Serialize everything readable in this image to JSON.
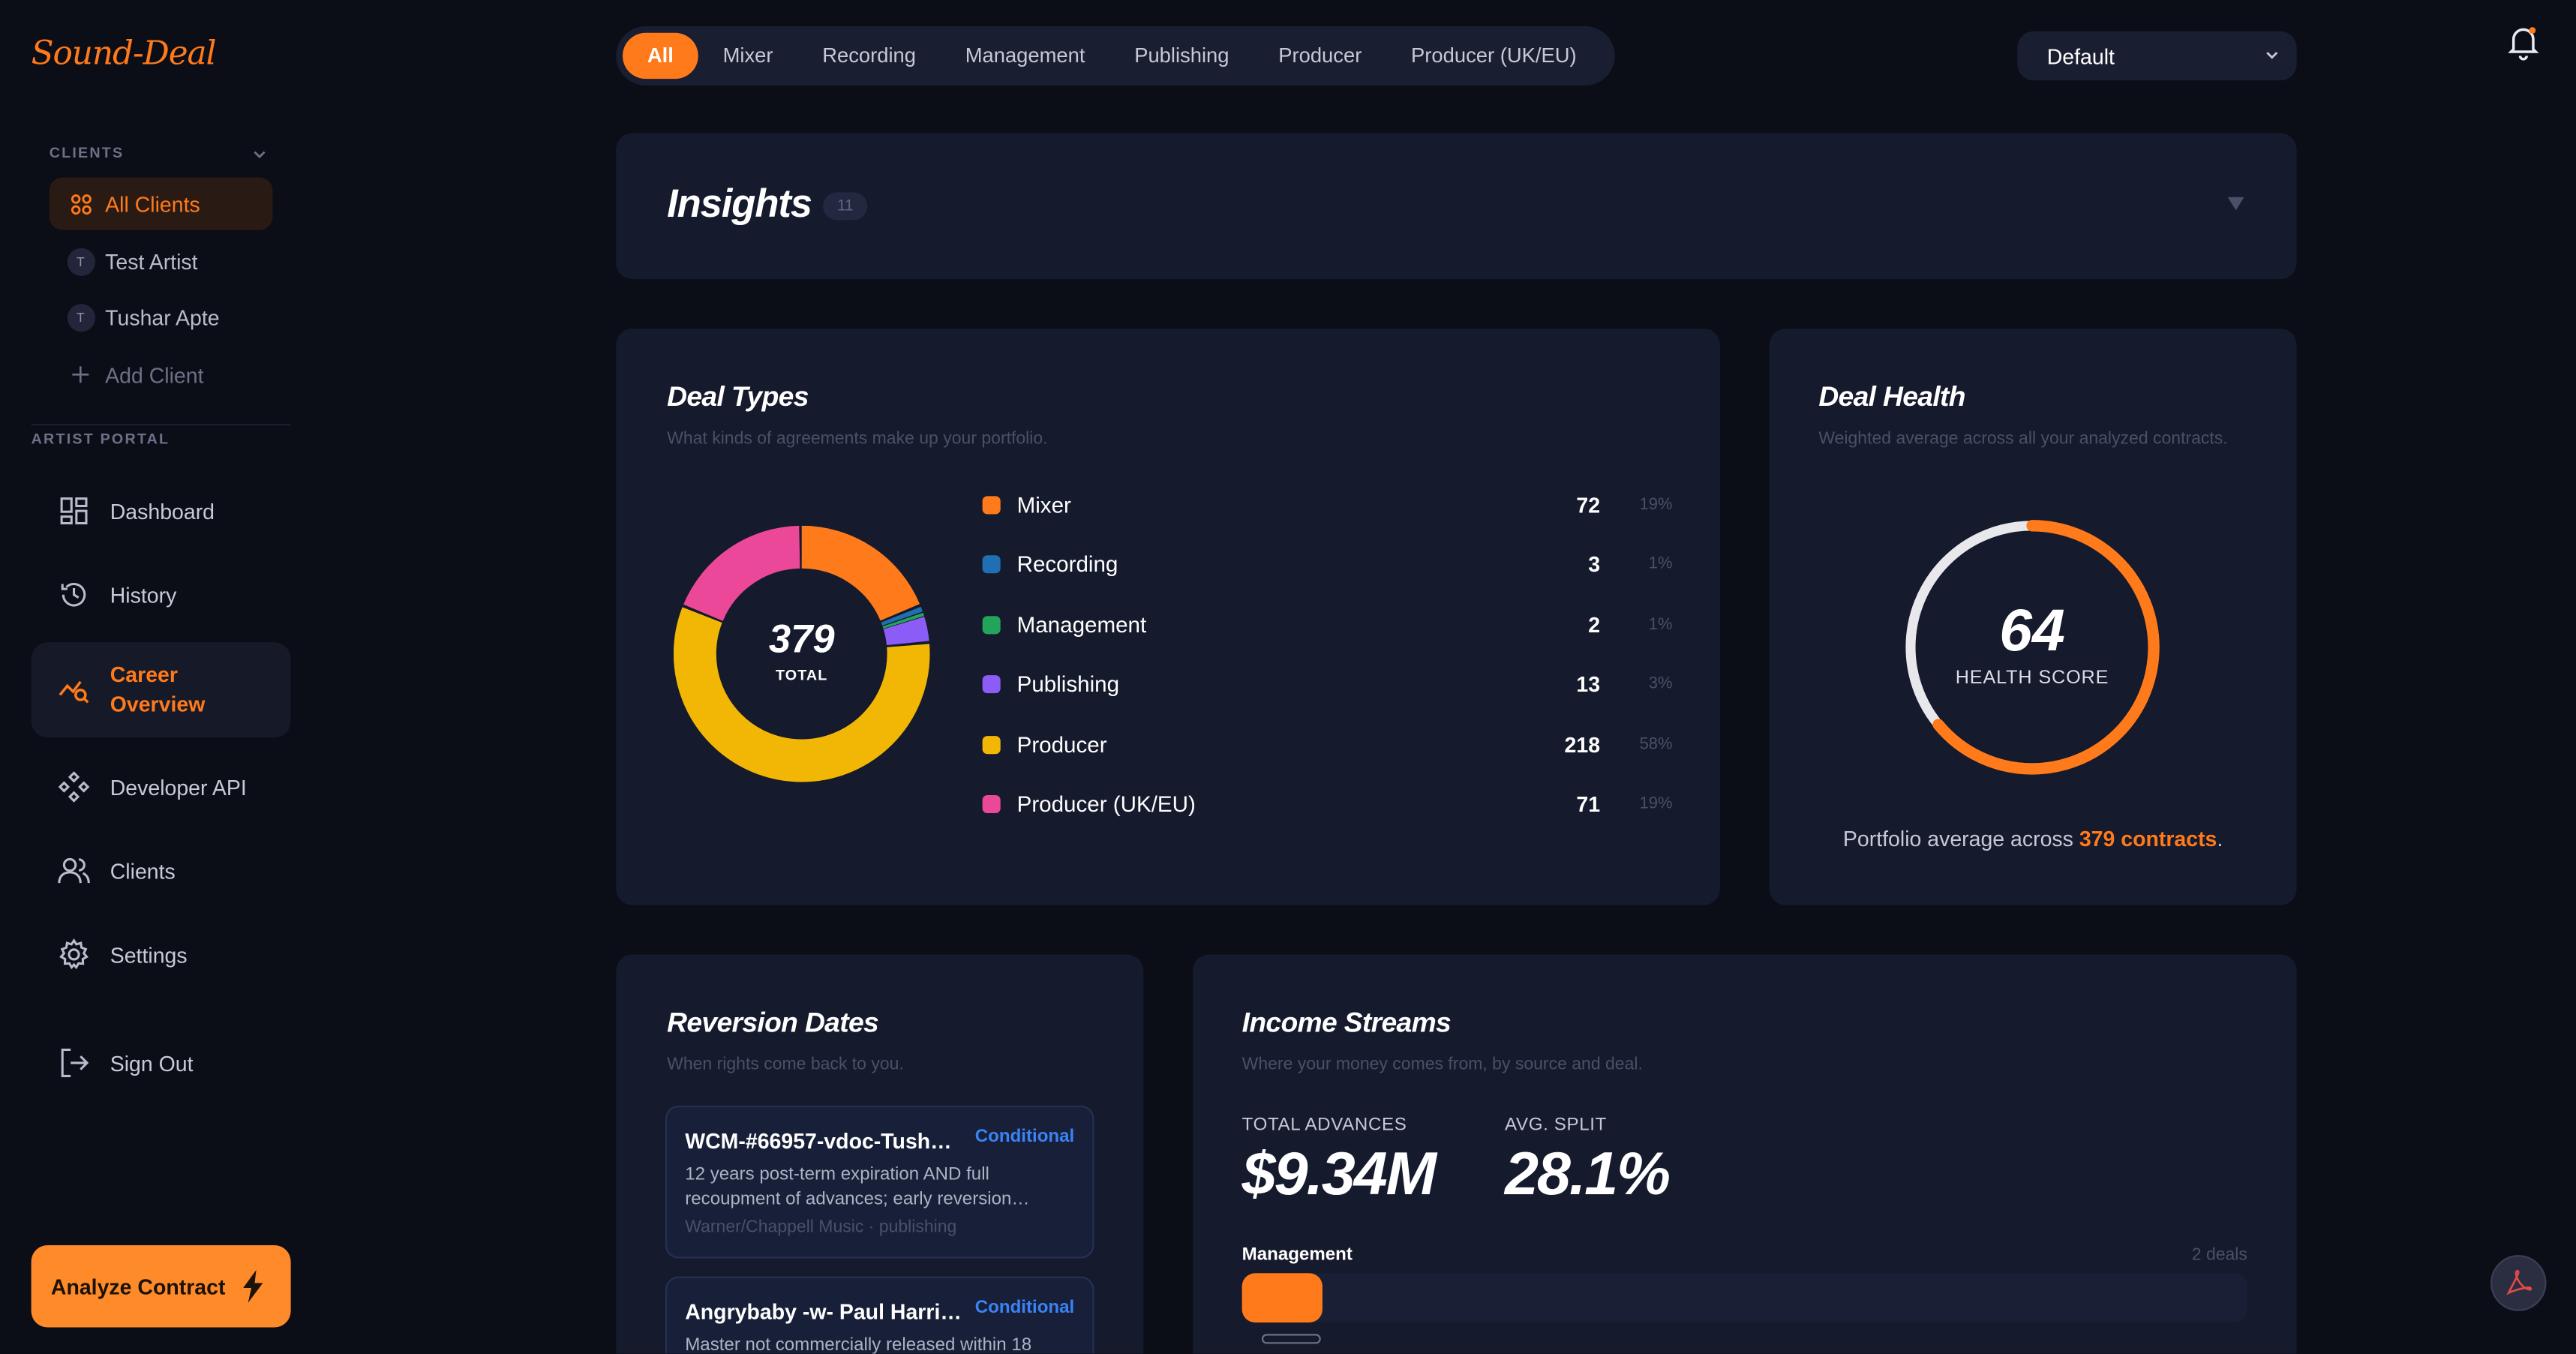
{
  "app": {
    "logo": "Sound-Deal"
  },
  "sidebar": {
    "clients_label": "CLIENTS",
    "clients": [
      {
        "label": "All Clients",
        "icon": "grid-icon",
        "active": true
      },
      {
        "label": "Test Artist",
        "avatar": "T"
      },
      {
        "label": "Tushar Apte",
        "avatar": "T"
      }
    ],
    "add_client": "Add Client",
    "portal_label": "ARTIST PORTAL",
    "nav": [
      {
        "label": "Dashboard",
        "icon": "dashboard-icon"
      },
      {
        "label": "History",
        "icon": "history-icon"
      },
      {
        "label": "Career Overview",
        "icon": "chart-search-icon",
        "active": true
      },
      {
        "label": "Developer API",
        "icon": "api-icon"
      },
      {
        "label": "Clients",
        "icon": "users-icon"
      },
      {
        "label": "Settings",
        "icon": "gear-icon"
      },
      {
        "label": "Sign Out",
        "icon": "sign-out-icon"
      }
    ],
    "analyze_button": "Analyze Contract"
  },
  "filters": [
    "All",
    "Mixer",
    "Recording",
    "Management",
    "Publishing",
    "Producer",
    "Producer (UK/EU)"
  ],
  "active_filter": "All",
  "sort_select": {
    "value": "Default"
  },
  "insights": {
    "title": "Insights",
    "count": "11"
  },
  "deal_types": {
    "title": "Deal Types",
    "subtitle": "What kinds of agreements make up your portfolio.",
    "total": "379",
    "total_label": "TOTAL",
    "colors": {
      "Mixer": "#ff7a1a",
      "Recording": "#1f6fb2",
      "Management": "#22a55a",
      "Publishing": "#8b5cf6",
      "Producer": "#f2b705",
      "Producer (UK/EU)": "#ec4899"
    }
  },
  "chart_data": {
    "type": "pie",
    "categories": [
      "Mixer",
      "Recording",
      "Management",
      "Publishing",
      "Producer",
      "Producer (UK/EU)"
    ],
    "values": [
      72,
      3,
      2,
      13,
      218,
      71
    ],
    "percent_labels": [
      "19%",
      "1%",
      "1%",
      "3%",
      "58%",
      "19%"
    ],
    "title": "Deal Types"
  },
  "deal_health": {
    "title": "Deal Health",
    "subtitle": "Weighted average across all your analyzed contracts.",
    "score": "64",
    "score_value": 64,
    "score_label": "HEALTH SCORE",
    "footer_prefix": "Portfolio average across ",
    "footer_highlight": "379 contracts",
    "footer_suffix": "."
  },
  "reversion": {
    "title": "Reversion Dates",
    "subtitle": "When rights come back to you.",
    "items": [
      {
        "name": "WCM-#66957-vdoc-Tush…",
        "tag": "Conditional",
        "desc": "12 years post-term expiration AND full recoupment of advances; early reversion…",
        "meta": "Warner/Chappell Music · publishing"
      },
      {
        "name": "Angrybaby -w- Paul Harri…",
        "tag": "Conditional",
        "desc": "Master not commercially released within 18"
      }
    ]
  },
  "income": {
    "title": "Income Streams",
    "subtitle": "Where your money comes from, by source and deal.",
    "advances_label": "TOTAL ADVANCES",
    "advances": "$9.34M",
    "split_label": "AVG. SPLIT",
    "split": "28.1%",
    "bars": [
      {
        "label": "Management",
        "count": "2 deals",
        "fraction": 0.08
      }
    ]
  }
}
